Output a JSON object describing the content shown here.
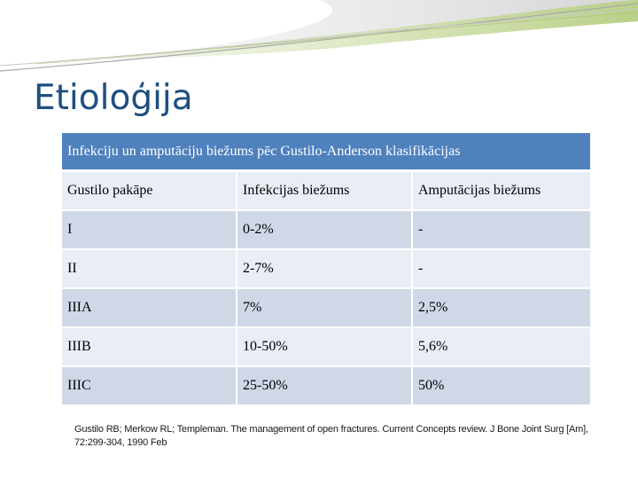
{
  "slide": {
    "title": "Etioloģija"
  },
  "table": {
    "caption": "Infekciju un amputāciju biežums pēc Gustilo-Anderson klasifikācijas",
    "headers": [
      "Gustilo pakāpe",
      "Infekcijas biežums",
      "Amputācijas biežums"
    ],
    "rows": [
      [
        "I",
        "0-2%",
        "-"
      ],
      [
        "II",
        "2-7%",
        "-"
      ],
      [
        "IIIA",
        "7%",
        "2,5%"
      ],
      [
        "IIIB",
        "10-50%",
        "5,6%"
      ],
      [
        "IIIC",
        "25-50%",
        "50%"
      ]
    ]
  },
  "reference": {
    "text": "Gustilo RB; Merkow RL; Templeman. The management of open fractures. Current Concepts review. J Bone Joint Surg [Am], 72:299-304, 1990 Feb"
  },
  "colors": {
    "title": "#1f4f7f",
    "caption_bg": "#4f81bd",
    "row_light": "#e9edf5",
    "row_dark": "#d0d8e8"
  }
}
